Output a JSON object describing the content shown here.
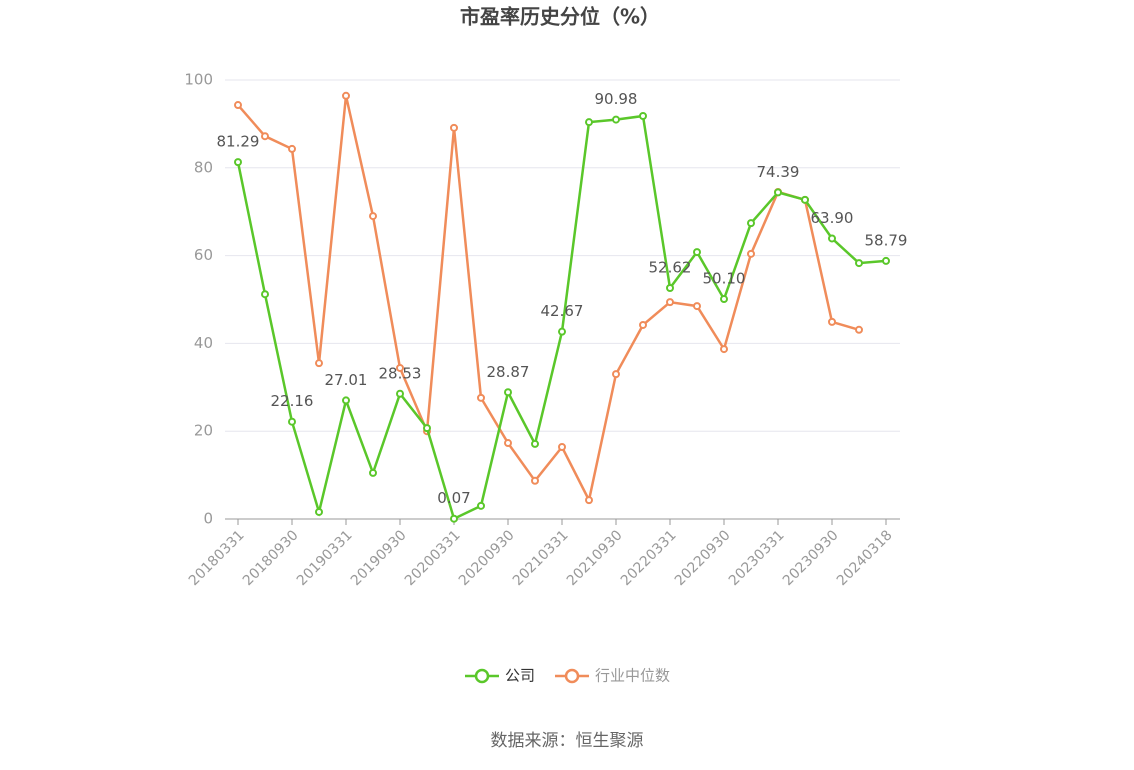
{
  "chart_data": {
    "type": "line",
    "title": "市盈率历史分位（%）",
    "source": "数据来源：恒生聚源",
    "categories": [
      "20180331",
      null,
      "20180930",
      null,
      "20190331",
      null,
      "20190930",
      null,
      "20200331",
      null,
      "20200930",
      null,
      "20210331",
      null,
      "20210930",
      null,
      "20220331",
      null,
      "20220930",
      null,
      "20230331",
      null,
      "20230930",
      null,
      "20240318"
    ],
    "series": [
      {
        "name": "公司",
        "color": "#5ac72a",
        "values": [
          81.29,
          51.2,
          22.16,
          1.6,
          27.01,
          10.5,
          28.53,
          20.7,
          0.07,
          3.0,
          28.87,
          17.1,
          42.67,
          90.4,
          90.98,
          91.8,
          52.62,
          60.8,
          50.1,
          67.4,
          74.39,
          72.7,
          63.9,
          58.3,
          58.79
        ],
        "value_labels": [
          "81.29",
          null,
          "22.16",
          null,
          "27.01",
          null,
          "28.53",
          null,
          "0.07",
          null,
          "28.87",
          null,
          "42.67",
          null,
          "90.98",
          null,
          "52.62",
          null,
          "50.10",
          null,
          "74.39",
          null,
          "63.90",
          null,
          "58.79"
        ]
      },
      {
        "name": "行业中位数",
        "color": "#f08c5a",
        "values": [
          94.3,
          87.2,
          84.3,
          35.5,
          96.4,
          69.0,
          34.4,
          20.0,
          89.1,
          27.6,
          17.3,
          8.7,
          16.4,
          4.3,
          33.0,
          44.2,
          49.4,
          48.5,
          38.7,
          60.4,
          74.5,
          72.7,
          44.9,
          43.1,
          null
        ]
      }
    ],
    "ylim": [
      0,
      100
    ],
    "yticks": [
      0,
      20,
      40,
      60,
      80,
      100
    ],
    "grid": true
  }
}
